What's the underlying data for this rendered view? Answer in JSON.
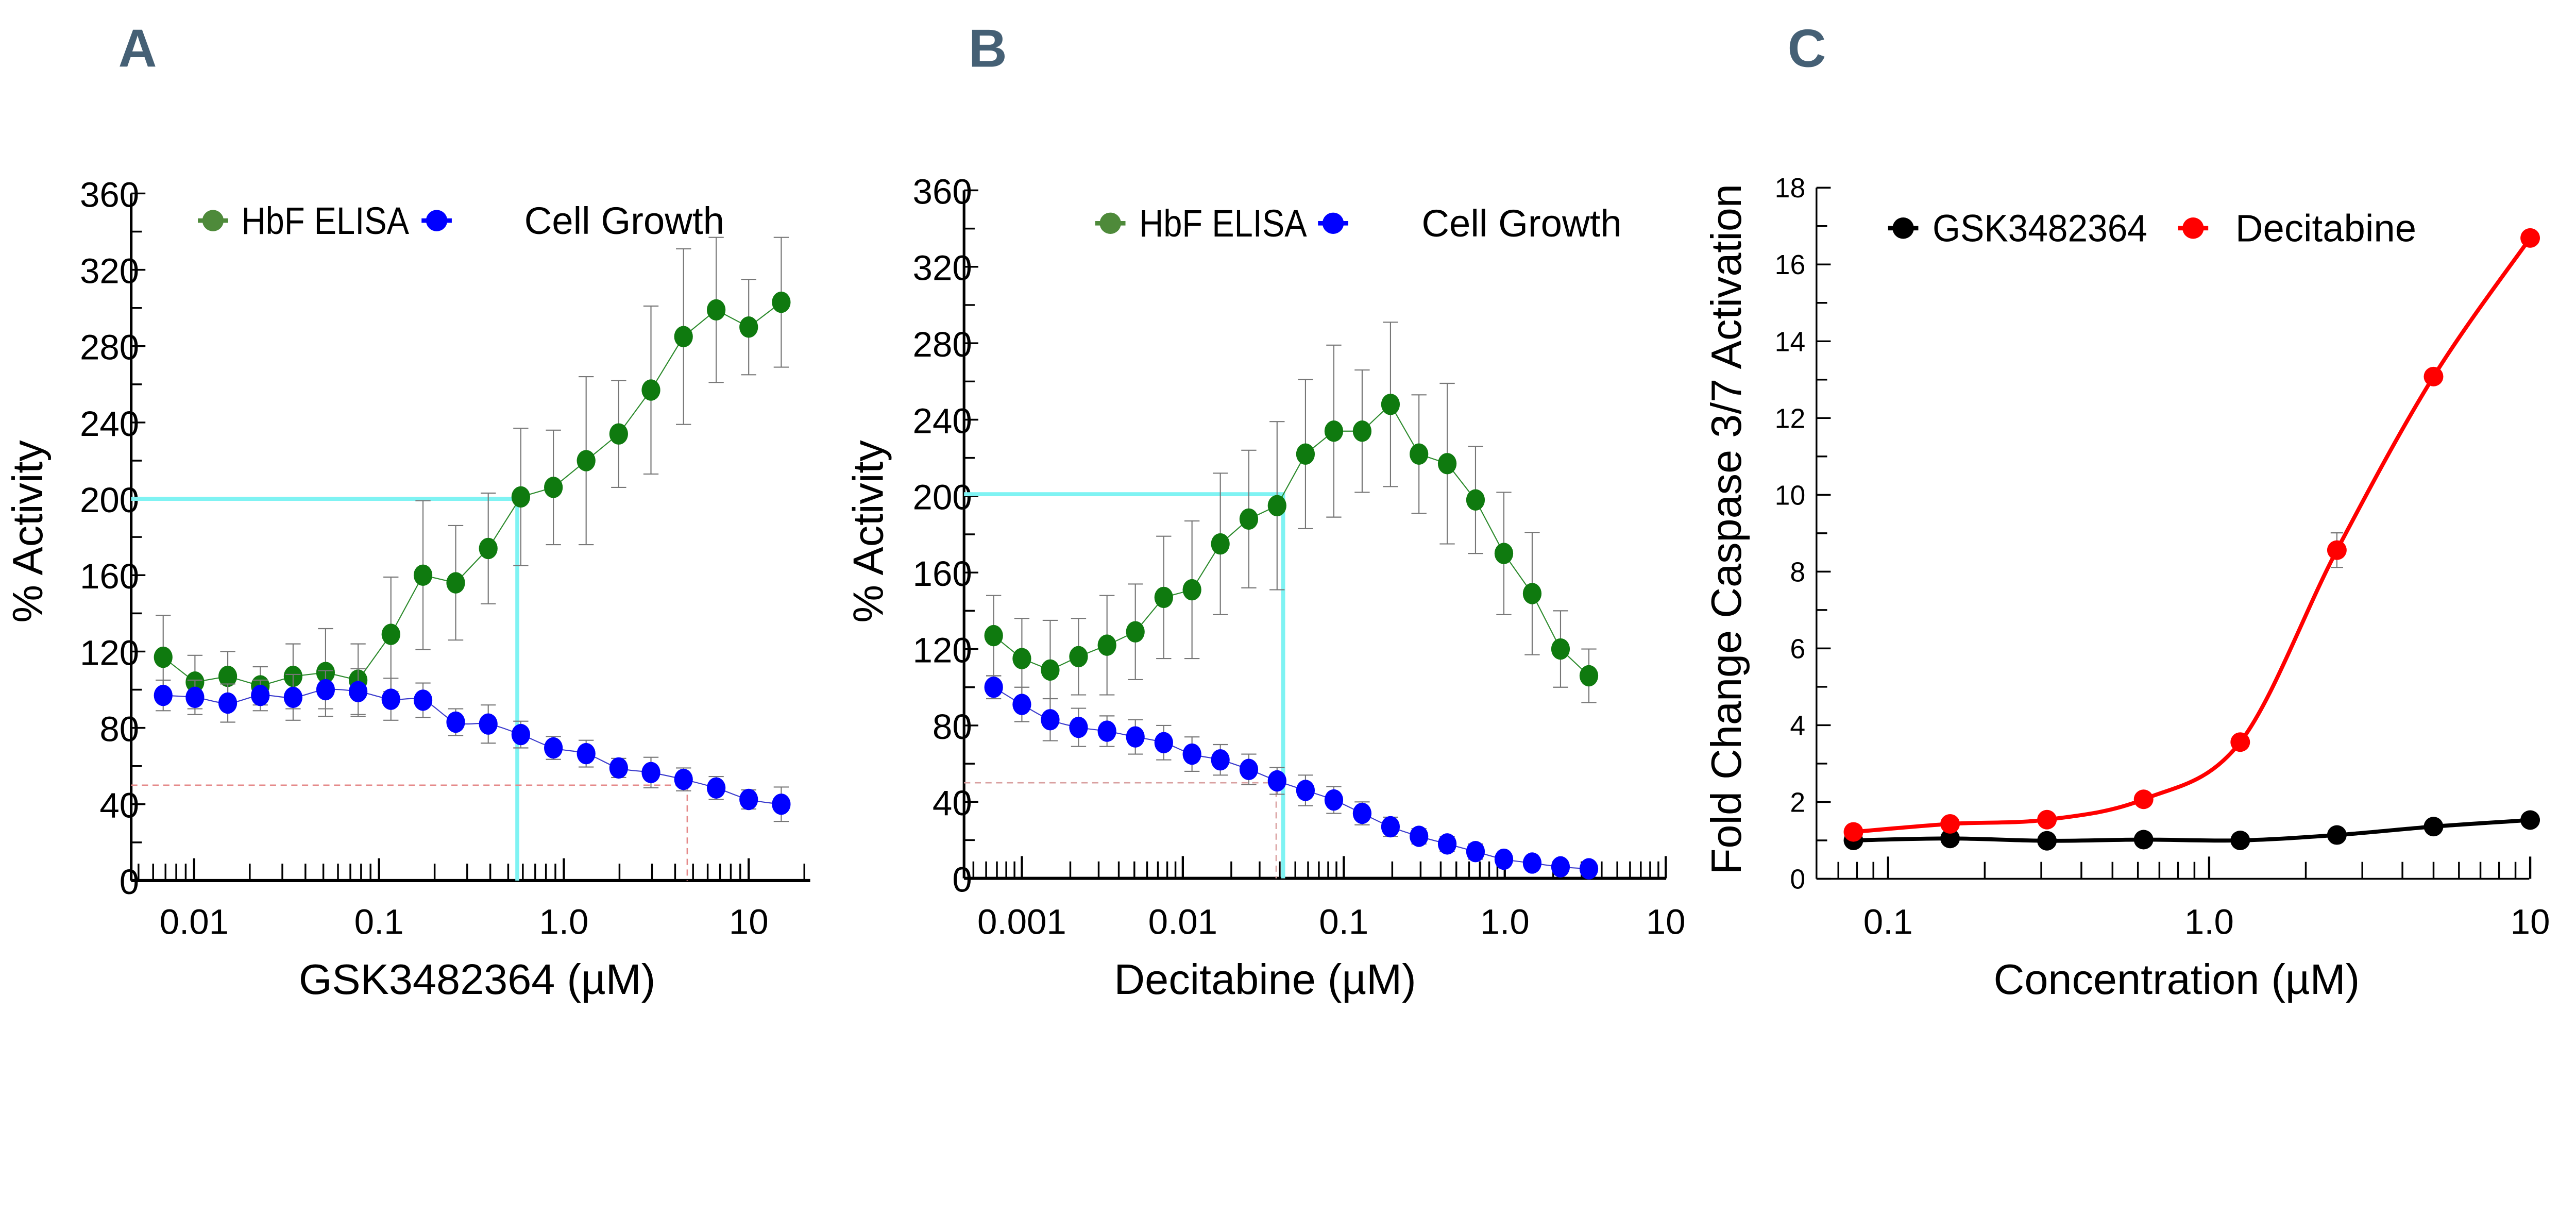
{
  "chart_data": [
    {
      "panel": "A",
      "type": "scatter",
      "x_scale": "log",
      "xlabel": "GSK3482364 (µM)",
      "ylabel": "% Activity",
      "ylim": [
        0,
        360
      ],
      "yticks": [
        "0",
        "40",
        "80",
        "120",
        "160",
        "200",
        "240",
        "280",
        "320",
        "360"
      ],
      "xticks": [
        {
          "value": 0.01,
          "label": "0.01"
        },
        {
          "value": 0.1,
          "label": "0.1"
        },
        {
          "value": 1,
          "label": "1.0"
        },
        {
          "value": 10,
          "label": "10"
        }
      ],
      "xlim": [
        0.0045,
        21
      ],
      "legend": {
        "placement": "top",
        "entries": [
          {
            "label": "HbF ELISA",
            "color": "#4e8a3a"
          },
          {
            "label": "Cell Growth",
            "color": "#0000ff"
          }
        ]
      },
      "series": [
        {
          "name": "HbF ELISA",
          "color": "#0f7a0f",
          "x": [
            0.0068,
            0.0101,
            0.0152,
            0.0228,
            0.0343,
            0.0514,
            0.0771,
            0.116,
            0.173,
            0.26,
            0.39,
            0.585,
            0.878,
            1.32,
            1.98,
            2.96,
            4.44,
            6.67,
            10,
            15
          ],
          "y": [
            117,
            104,
            107,
            102,
            107,
            109,
            105,
            129,
            160,
            156,
            174,
            201,
            206,
            220,
            234,
            257,
            285,
            299,
            290,
            303
          ],
          "err": [
            22,
            14,
            13,
            10,
            17,
            23,
            19,
            30,
            39,
            30,
            29,
            36,
            30,
            44,
            28,
            44,
            46,
            38,
            25,
            34
          ]
        },
        {
          "name": "Cell Growth",
          "color": "#0000ff",
          "x": [
            0.0068,
            0.0101,
            0.0152,
            0.0228,
            0.0343,
            0.0514,
            0.0771,
            0.116,
            0.173,
            0.26,
            0.39,
            0.585,
            0.878,
            1.32,
            1.98,
            2.96,
            4.44,
            6.67,
            10,
            15
          ],
          "y": [
            97,
            96,
            93,
            97,
            96,
            100,
            99,
            95,
            94.5,
            83,
            82,
            76.5,
            69.5,
            66.5,
            59,
            56.6,
            53,
            48.5,
            42.5,
            40
          ],
          "err": [
            8,
            9,
            10,
            8,
            12,
            10,
            12,
            11,
            9,
            7,
            10,
            7,
            6,
            7,
            5,
            8,
            6,
            6,
            5,
            9
          ]
        }
      ],
      "reference_lines": [
        {
          "color": "#7ff3f3",
          "style": "solid",
          "y": 200,
          "x": 0.56
        },
        {
          "color": "#e58a8a",
          "style": "dashed",
          "y": 50,
          "x": 4.65
        }
      ]
    },
    {
      "panel": "B",
      "type": "scatter",
      "x_scale": "log",
      "xlabel": "Decitabine (µM)",
      "ylabel": "% Activity",
      "ylim": [
        0,
        360
      ],
      "yticks": [
        "0",
        "40",
        "80",
        "120",
        "160",
        "200",
        "240",
        "280",
        "320",
        "360"
      ],
      "xticks": [
        {
          "value": 0.001,
          "label": "0.001"
        },
        {
          "value": 0.01,
          "label": "0.01"
        },
        {
          "value": 0.1,
          "label": "0.1"
        },
        {
          "value": 1,
          "label": "1.0"
        },
        {
          "value": 10,
          "label": "10"
        }
      ],
      "xlim": [
        0.00044,
        10
      ],
      "legend": {
        "placement": "top",
        "entries": [
          {
            "label": "HbF ELISA",
            "color": "#4e8a3a"
          },
          {
            "label": "Cell Growth",
            "color": "#0000ff"
          }
        ]
      },
      "series": [
        {
          "name": "HbF ELISA",
          "color": "#0f7a0f",
          "x": [
            0.000668,
            0.001,
            0.0015,
            0.00225,
            0.00338,
            0.00507,
            0.00761,
            0.0114,
            0.0171,
            0.0257,
            0.0385,
            0.0578,
            0.0867,
            0.13,
            0.195,
            0.293,
            0.439,
            0.658,
            0.987,
            1.48,
            2.22,
            3.33
          ],
          "y": [
            127,
            115,
            109,
            116,
            122,
            129,
            147,
            151,
            175,
            188,
            195,
            222,
            234,
            234,
            248,
            222,
            217,
            198,
            170,
            149,
            120,
            106
          ],
          "err": [
            21,
            21,
            26,
            20,
            26,
            25,
            32,
            36,
            37,
            36,
            44,
            39,
            45,
            32,
            43,
            31,
            42,
            28,
            32,
            32,
            20,
            14
          ]
        },
        {
          "name": "Cell Growth",
          "color": "#0000ff",
          "x": [
            0.000668,
            0.001,
            0.0015,
            0.00225,
            0.00338,
            0.00507,
            0.00761,
            0.0114,
            0.0171,
            0.0257,
            0.0385,
            0.0578,
            0.0867,
            0.13,
            0.195,
            0.293,
            0.439,
            0.658,
            0.987,
            1.48,
            2.22,
            3.33
          ],
          "y": [
            100,
            91,
            83,
            79,
            77,
            74,
            71,
            65,
            62,
            57,
            51,
            46,
            41,
            34,
            27,
            22,
            18,
            14,
            10,
            8,
            6,
            5
          ],
          "err": [
            6,
            9,
            11,
            10,
            8,
            9,
            9,
            9,
            8,
            8,
            7,
            8,
            7,
            6,
            5,
            4,
            4,
            4,
            3,
            3,
            3,
            3
          ]
        }
      ],
      "reference_lines": [
        {
          "color": "#7ff3f3",
          "style": "solid",
          "y": 201,
          "x": 0.042
        },
        {
          "color": "#d9a0a0",
          "style": "dashed",
          "y": 50,
          "x": 0.038
        }
      ]
    },
    {
      "panel": "C",
      "type": "line",
      "x_scale": "log",
      "xlabel": "Concentration (µM)",
      "ylabel": "Fold Change Caspase 3/7 Activation",
      "ylim": [
        0,
        18
      ],
      "yticks": [
        "0",
        "2",
        "4",
        "6",
        "8",
        "10",
        "12",
        "14",
        "16",
        "18"
      ],
      "xticks": [
        {
          "value": 0.1,
          "label": "0.1"
        },
        {
          "value": 1,
          "label": "1.0"
        },
        {
          "value": 10,
          "label": "10"
        }
      ],
      "xlim": [
        0.06,
        10
      ],
      "legend": {
        "placement": "top",
        "entries": [
          {
            "label": "GSK3482364",
            "color": "#000000"
          },
          {
            "label": "Decitabine",
            "color": "#ff0000"
          }
        ]
      },
      "series": [
        {
          "name": "GSK3482364",
          "color": "#000000",
          "x": [
            0.078,
            0.156,
            0.3125,
            0.625,
            1.25,
            2.5,
            5,
            10
          ],
          "y": [
            1.0,
            1.05,
            0.99,
            1.02,
            1.0,
            1.14,
            1.36,
            1.53
          ]
        },
        {
          "name": "Decitabine",
          "color": "#ff0000",
          "x": [
            0.078,
            0.156,
            0.3125,
            0.625,
            1.25,
            2.5,
            5,
            10
          ],
          "y": [
            1.22,
            1.43,
            1.54,
            2.07,
            3.56,
            8.56,
            13.08,
            16.69
          ],
          "err": [
            0,
            0,
            0,
            0,
            0,
            0.45,
            0,
            0
          ]
        }
      ]
    }
  ]
}
